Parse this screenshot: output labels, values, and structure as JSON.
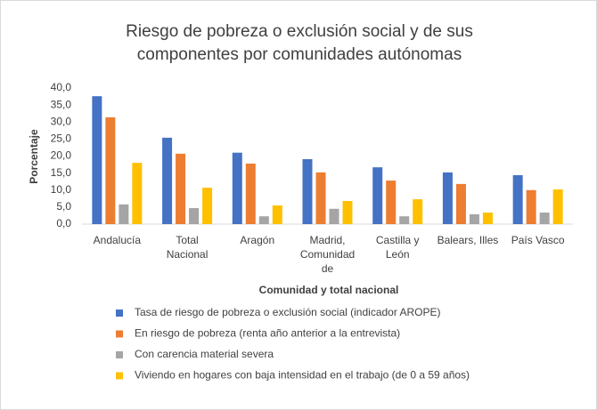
{
  "chart_data": {
    "type": "bar",
    "title": "Riesgo de pobreza o exclusión social y de sus componentes por comunidades autónomas",
    "xlabel": "Comunidad y total nacional",
    "ylabel": "Porcentaje",
    "categories": [
      "Andalucía",
      "Total Nacional",
      "Aragón",
      "Madrid, Comunidad de",
      "Castilla y León",
      "Balears, Illes",
      "País Vasco"
    ],
    "series": [
      {
        "name": "Tasa de riesgo de pobreza o exclusión social (indicador AROPE)",
        "color": "#4472c4",
        "values": [
          37.6,
          25.4,
          21.0,
          19.1,
          16.7,
          15.2,
          14.4
        ]
      },
      {
        "name": "En riesgo de pobreza (renta año anterior a la entrevista)",
        "color": "#ed7d31",
        "values": [
          31.4,
          20.7,
          17.8,
          15.2,
          12.8,
          11.8,
          10.0
        ]
      },
      {
        "name": "Con carencia material severa",
        "color": "#a5a5a5",
        "values": [
          5.8,
          4.7,
          2.3,
          4.5,
          2.3,
          2.9,
          3.4
        ]
      },
      {
        "name": "Viviendo en hogares con baja intensidad en el trabajo (de 0 a 59 años)",
        "color": "#ffc000",
        "values": [
          18.0,
          10.7,
          5.5,
          6.8,
          7.3,
          3.4,
          10.2
        ]
      }
    ],
    "ylim": [
      0,
      40
    ],
    "yticks": [
      {
        "value": 0,
        "label": "0,0"
      },
      {
        "value": 5,
        "label": "5,0"
      },
      {
        "value": 10,
        "label": "10,0"
      },
      {
        "value": 15,
        "label": "15,0"
      },
      {
        "value": 20,
        "label": "20,0"
      },
      {
        "value": 25,
        "label": "25,0"
      },
      {
        "value": 30,
        "label": "30,0"
      },
      {
        "value": 35,
        "label": "35,0"
      },
      {
        "value": 40,
        "label": "40,0"
      }
    ],
    "grid": false,
    "legend": "bottom"
  }
}
